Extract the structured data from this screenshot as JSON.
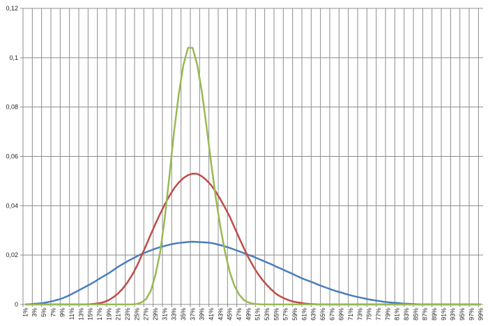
{
  "chart_data": {
    "type": "line",
    "categories": [
      "1%",
      null,
      "3%",
      null,
      "5%",
      null,
      "7%",
      null,
      "9%",
      null,
      "11%",
      null,
      "13%",
      null,
      "15%",
      null,
      "17%",
      null,
      "19%",
      null,
      "21%",
      null,
      "23%",
      null,
      "25%",
      null,
      "27%",
      null,
      "29%",
      null,
      "31%",
      null,
      "33%",
      null,
      "35%",
      null,
      "37%",
      null,
      "39%",
      null,
      "41%",
      null,
      "43%",
      null,
      "45%",
      null,
      "47%",
      null,
      "49%",
      null,
      "51%",
      null,
      "53%",
      null,
      "55%",
      null,
      "57%",
      null,
      "59%",
      null,
      "61%",
      null,
      "63%",
      null,
      "65%",
      null,
      "67%",
      null,
      "69%",
      null,
      "71%",
      null,
      "73%",
      null,
      "75%",
      null,
      "77%",
      null,
      "79%",
      null,
      "81%",
      null,
      "83%",
      null,
      "85%",
      null,
      "87%",
      null,
      "89%",
      null,
      "91%",
      null,
      "93%",
      null,
      "95%",
      null,
      "97%",
      null,
      "99%"
    ],
    "series": [
      {
        "color": "#4a7ebb",
        "values": [
          0,
          0.0001,
          0.0003,
          0.0004,
          0.0006,
          0.001,
          0.0014,
          0.0019,
          0.0025,
          0.0033,
          0.0042,
          0.0052,
          0.0062,
          0.0072,
          0.0082,
          0.0093,
          0.0105,
          0.0116,
          0.0127,
          0.014,
          0.0153,
          0.0164,
          0.0175,
          0.0185,
          0.0195,
          0.0204,
          0.0212,
          0.0219,
          0.0226,
          0.0232,
          0.0237,
          0.0242,
          0.0246,
          0.0249,
          0.0251,
          0.0253,
          0.0254,
          0.0253,
          0.0252,
          0.0251,
          0.0249,
          0.0245,
          0.024,
          0.0235,
          0.0229,
          0.0222,
          0.0215,
          0.0208,
          0.0201,
          0.0194,
          0.0186,
          0.0178,
          0.017,
          0.0162,
          0.0153,
          0.0145,
          0.0136,
          0.0128,
          0.0119,
          0.011,
          0.0102,
          0.0095,
          0.0088,
          0.008,
          0.0073,
          0.0066,
          0.0059,
          0.0053,
          0.0048,
          0.0042,
          0.0037,
          0.0032,
          0.0028,
          0.0024,
          0.002,
          0.0017,
          0.0014,
          0.0011,
          0.0009,
          0.0007,
          0.0006,
          0.0004,
          0.0003,
          0.0002,
          0.0001,
          0,
          0,
          0,
          0,
          0,
          0,
          0,
          0,
          0,
          0,
          0,
          0,
          0,
          0
        ]
      },
      {
        "color": "#be4b48",
        "values": [
          0,
          0,
          0,
          0,
          0,
          0,
          0,
          0,
          0,
          0,
          0,
          0,
          0,
          0,
          0.0001,
          0.0003,
          0.0005,
          0.001,
          0.0018,
          0.003,
          0.0045,
          0.0065,
          0.009,
          0.012,
          0.0155,
          0.0197,
          0.024,
          0.0284,
          0.0327,
          0.0367,
          0.0405,
          0.044,
          0.047,
          0.0494,
          0.0512,
          0.0524,
          0.053,
          0.0529,
          0.0519,
          0.0503,
          0.0483,
          0.0456,
          0.0425,
          0.0391,
          0.0355,
          0.0312,
          0.027,
          0.0229,
          0.019,
          0.0156,
          0.0125,
          0.01,
          0.0078,
          0.0059,
          0.0042,
          0.0031,
          0.0022,
          0.0015,
          0.001,
          0.0007,
          0.0004,
          0.0002,
          0.0001,
          0,
          0,
          0,
          0,
          0,
          0,
          0,
          0,
          0,
          0,
          0,
          0,
          0,
          0,
          0,
          0,
          0,
          0,
          0,
          0,
          0,
          0,
          0,
          0,
          0,
          0,
          0,
          0,
          0,
          0,
          0,
          0,
          0,
          0,
          0,
          0
        ]
      },
      {
        "color": "#98b954",
        "values": [
          0,
          0,
          0,
          0,
          0,
          0,
          0,
          0,
          0,
          0,
          0,
          0,
          0,
          0,
          0,
          0,
          0,
          0,
          0,
          0,
          0,
          0,
          0,
          0,
          0.0002,
          0.0008,
          0.0022,
          0.0055,
          0.012,
          0.021,
          0.035,
          0.052,
          0.07,
          0.085,
          0.097,
          0.104,
          0.104,
          0.097,
          0.086,
          0.072,
          0.057,
          0.043,
          0.031,
          0.021,
          0.013,
          0.0075,
          0.004,
          0.0018,
          0.0008,
          0.0003,
          0.0001,
          0,
          0,
          0,
          0,
          0,
          0,
          0,
          0,
          0,
          0,
          0,
          0,
          0,
          0,
          0,
          0,
          0,
          0,
          0,
          0,
          0,
          0,
          0,
          0,
          0,
          0,
          0,
          0,
          0,
          0,
          0,
          0,
          0,
          0,
          0,
          0,
          0,
          0,
          0,
          0,
          0,
          0,
          0,
          0,
          0,
          0,
          0,
          0
        ]
      }
    ],
    "ylim": [
      0,
      0.12
    ],
    "yticks": [
      0,
      {
        "value": 0.02,
        "label": "0,02"
      },
      {
        "value": 0.04,
        "label": "0,04"
      },
      {
        "value": 0.06,
        "label": "0,06"
      },
      {
        "value": 0.08,
        "label": "0,08"
      },
      {
        "value": 0.1,
        "label": "0,1"
      },
      {
        "value": 0.12,
        "label": "0,12"
      }
    ],
    "grid": true
  }
}
